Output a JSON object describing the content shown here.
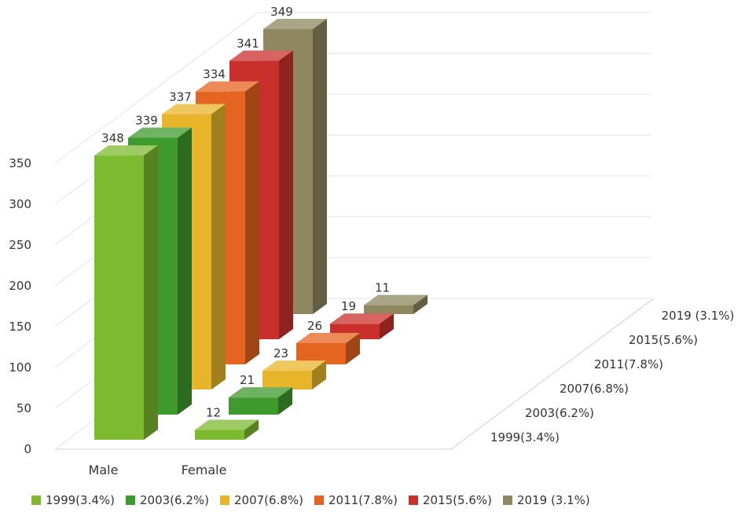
{
  "chart_data": {
    "type": "bar",
    "subtype": "3d-clustered-column",
    "categories": [
      "Male",
      "Female"
    ],
    "series": [
      {
        "name": "1999(3.4%)",
        "values": [
          348,
          12
        ],
        "color": "#7dba2f"
      },
      {
        "name": "2003(6.2%)",
        "values": [
          339,
          21
        ],
        "color": "#3f9a2e"
      },
      {
        "name": "2007(6.8%)",
        "values": [
          337,
          23
        ],
        "color": "#e8b52a"
      },
      {
        "name": "2011(7.8%)",
        "values": [
          334,
          26
        ],
        "color": "#e5641f"
      },
      {
        "name": "2015(5.6%)",
        "values": [
          341,
          19
        ],
        "color": "#c9302c"
      },
      {
        "name": "2019 (3.1%)",
        "values": [
          349,
          11
        ],
        "color": "#8f8760"
      }
    ],
    "depth_labels": [
      "1999(3.4%)",
      "2003(6.2%)",
      "2007(6.8%)",
      "2011(7.8%)",
      "2015(5.6%)",
      "2019 (3.1%)"
    ],
    "y_ticks": [
      0,
      50,
      100,
      150,
      200,
      250,
      300,
      350
    ],
    "ylim": [
      0,
      350
    ],
    "grid": true,
    "legend_position": "bottom",
    "data_labels": true
  }
}
